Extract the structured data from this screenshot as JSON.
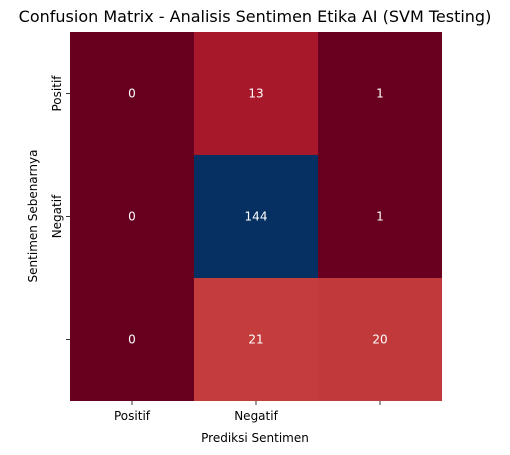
{
  "chart_data": {
    "type": "heatmap",
    "title": "Confusion Matrix - Analisis Sentimen Etika AI (SVM Testing)",
    "xlabel": "Prediksi Sentimen",
    "ylabel": "Sentimen Sebenarnya",
    "x_tick_labels": [
      "Positif",
      "Negatif",
      ""
    ],
    "y_tick_labels": [
      "Positif",
      "Negatif",
      ""
    ],
    "values": [
      [
        0,
        13,
        1
      ],
      [
        0,
        144,
        1
      ],
      [
        0,
        21,
        20
      ]
    ],
    "colormap": "RdBu",
    "cell_colors": [
      [
        "#67001f",
        "#a8182b",
        "#68001f"
      ],
      [
        "#67001f",
        "#053061",
        "#68001f"
      ],
      [
        "#67001f",
        "#c43c3c",
        "#c13a3b"
      ]
    ],
    "colorbar": false,
    "text_color": "#ffffff"
  }
}
